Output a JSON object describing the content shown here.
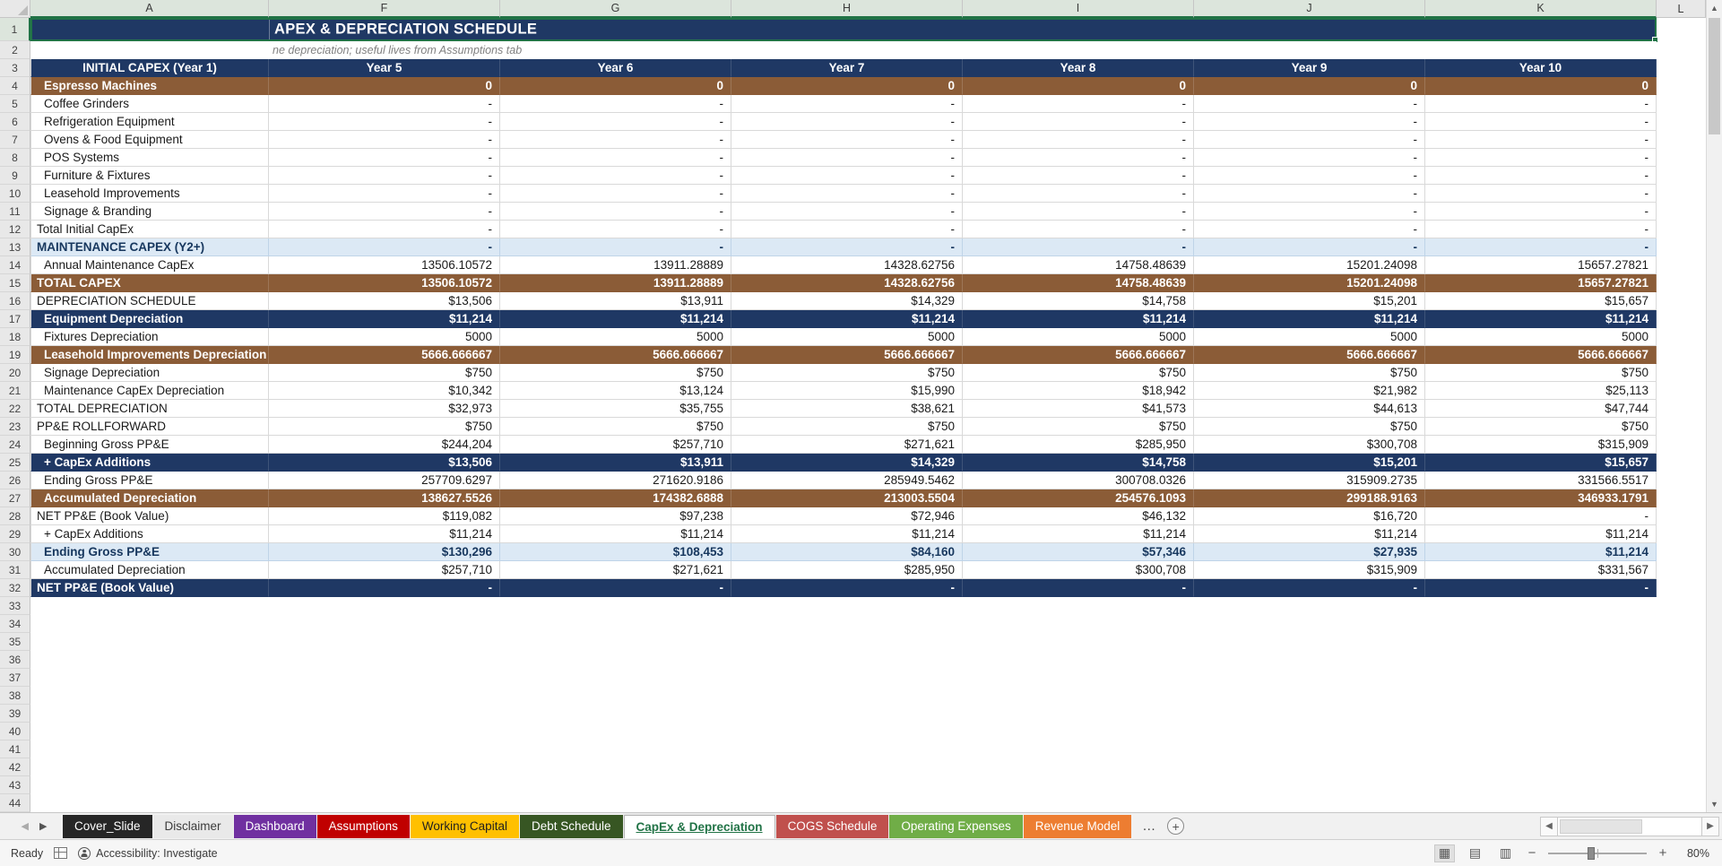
{
  "grid": {
    "title": "APEX & DEPRECIATION SCHEDULE",
    "note": "ne depreciation; useful lives from Assumptions tab",
    "col_letters": [
      "A",
      "F",
      "G",
      "H",
      "I",
      "J",
      "K",
      "L"
    ],
    "header_label": "INITIAL CAPEX (Year 1)",
    "year_headers": [
      "Year 5",
      "Year 6",
      "Year 7",
      "Year 8",
      "Year 9",
      "Year 10"
    ],
    "rows": [
      {
        "n": 4,
        "label": "Espresso Machines",
        "style": "brown",
        "bold": true,
        "indent": true,
        "values": [
          "0",
          "0",
          "0",
          "0",
          "0",
          "0"
        ]
      },
      {
        "n": 5,
        "label": "Coffee Grinders",
        "style": "plain",
        "bold": false,
        "indent": true,
        "values": [
          "-",
          "-",
          "-",
          "-",
          "-",
          "-"
        ]
      },
      {
        "n": 6,
        "label": "Refrigeration Equipment",
        "style": "plain",
        "bold": false,
        "indent": true,
        "values": [
          "-",
          "-",
          "-",
          "-",
          "-",
          "-"
        ]
      },
      {
        "n": 7,
        "label": "Ovens & Food Equipment",
        "style": "plain",
        "bold": false,
        "indent": true,
        "values": [
          "-",
          "-",
          "-",
          "-",
          "-",
          "-"
        ]
      },
      {
        "n": 8,
        "label": "POS Systems",
        "style": "plain",
        "bold": false,
        "indent": true,
        "values": [
          "-",
          "-",
          "-",
          "-",
          "-",
          "-"
        ]
      },
      {
        "n": 9,
        "label": "Furniture & Fixtures",
        "style": "plain",
        "bold": false,
        "indent": true,
        "values": [
          "-",
          "-",
          "-",
          "-",
          "-",
          "-"
        ]
      },
      {
        "n": 10,
        "label": "Leasehold Improvements",
        "style": "plain",
        "bold": false,
        "indent": true,
        "values": [
          "-",
          "-",
          "-",
          "-",
          "-",
          "-"
        ]
      },
      {
        "n": 11,
        "label": "Signage & Branding",
        "style": "plain",
        "bold": false,
        "indent": true,
        "values": [
          "-",
          "-",
          "-",
          "-",
          "-",
          "-"
        ]
      },
      {
        "n": 12,
        "label": "Total Initial CapEx",
        "style": "plain",
        "bold": false,
        "indent": false,
        "values": [
          "-",
          "-",
          "-",
          "-",
          "-",
          "-"
        ]
      },
      {
        "n": 13,
        "label": "MAINTENANCE CAPEX (Y2+)",
        "style": "blue",
        "bold": true,
        "indent": false,
        "values": [
          "-",
          "-",
          "-",
          "-",
          "-",
          "-"
        ]
      },
      {
        "n": 14,
        "label": "Annual Maintenance CapEx",
        "style": "plain",
        "bold": false,
        "indent": true,
        "values": [
          "13506.10572",
          "13911.28889",
          "14328.62756",
          "14758.48639",
          "15201.24098",
          "15657.27821"
        ]
      },
      {
        "n": 15,
        "label": "TOTAL CAPEX",
        "style": "brown",
        "bold": true,
        "indent": false,
        "values": [
          "13506.10572",
          "13911.28889",
          "14328.62756",
          "14758.48639",
          "15201.24098",
          "15657.27821"
        ]
      },
      {
        "n": 16,
        "label": "DEPRECIATION SCHEDULE",
        "style": "plain",
        "bold": false,
        "indent": false,
        "values": [
          "$13,506",
          "$13,911",
          "$14,329",
          "$14,758",
          "$15,201",
          "$15,657"
        ]
      },
      {
        "n": 17,
        "label": "Equipment Depreciation",
        "style": "navy",
        "bold": true,
        "indent": true,
        "values": [
          "$11,214",
          "$11,214",
          "$11,214",
          "$11,214",
          "$11,214",
          "$11,214"
        ]
      },
      {
        "n": 18,
        "label": "Fixtures Depreciation",
        "style": "plain",
        "bold": false,
        "indent": true,
        "values": [
          "5000",
          "5000",
          "5000",
          "5000",
          "5000",
          "5000"
        ]
      },
      {
        "n": 19,
        "label": "Leasehold Improvements Depreciation",
        "style": "brown",
        "bold": true,
        "indent": true,
        "values": [
          "5666.666667",
          "5666.666667",
          "5666.666667",
          "5666.666667",
          "5666.666667",
          "5666.666667"
        ]
      },
      {
        "n": 20,
        "label": "Signage Depreciation",
        "style": "plain",
        "bold": false,
        "indent": true,
        "values": [
          "$750",
          "$750",
          "$750",
          "$750",
          "$750",
          "$750"
        ]
      },
      {
        "n": 21,
        "label": "Maintenance CapEx Depreciation",
        "style": "plain",
        "bold": false,
        "indent": true,
        "values": [
          "$10,342",
          "$13,124",
          "$15,990",
          "$18,942",
          "$21,982",
          "$25,113"
        ]
      },
      {
        "n": 22,
        "label": "TOTAL DEPRECIATION",
        "style": "plain",
        "bold": false,
        "indent": false,
        "values": [
          "$32,973",
          "$35,755",
          "$38,621",
          "$41,573",
          "$44,613",
          "$47,744"
        ]
      },
      {
        "n": 23,
        "label": "PP&E ROLLFORWARD",
        "style": "plain",
        "bold": false,
        "indent": false,
        "values": [
          "$750",
          "$750",
          "$750",
          "$750",
          "$750",
          "$750"
        ]
      },
      {
        "n": 24,
        "label": "Beginning Gross PP&E",
        "style": "plain",
        "bold": false,
        "indent": true,
        "values": [
          "$244,204",
          "$257,710",
          "$271,621",
          "$285,950",
          "$300,708",
          "$315,909"
        ]
      },
      {
        "n": 25,
        "label": "+ CapEx Additions",
        "style": "navy",
        "bold": true,
        "indent": true,
        "values": [
          "$13,506",
          "$13,911",
          "$14,329",
          "$14,758",
          "$15,201",
          "$15,657"
        ]
      },
      {
        "n": 26,
        "label": "Ending Gross PP&E",
        "style": "plain",
        "bold": false,
        "indent": true,
        "values": [
          "257709.6297",
          "271620.9186",
          "285949.5462",
          "300708.0326",
          "315909.2735",
          "331566.5517"
        ]
      },
      {
        "n": 27,
        "label": "Accumulated Depreciation",
        "style": "brown",
        "bold": true,
        "indent": true,
        "values": [
          "138627.5526",
          "174382.6888",
          "213003.5504",
          "254576.1093",
          "299188.9163",
          "346933.1791"
        ]
      },
      {
        "n": 28,
        "label": "NET PP&E (Book Value)",
        "style": "plain",
        "bold": false,
        "indent": false,
        "values": [
          "$119,082",
          "$97,238",
          "$72,946",
          "$46,132",
          "$16,720",
          "-"
        ]
      },
      {
        "n": 29,
        "label": "+ CapEx Additions",
        "style": "plain",
        "bold": false,
        "indent": true,
        "values": [
          "$11,214",
          "$11,214",
          "$11,214",
          "$11,214",
          "$11,214",
          "$11,214"
        ]
      },
      {
        "n": 30,
        "label": "Ending Gross PP&E",
        "style": "blue",
        "bold": true,
        "indent": true,
        "values": [
          "$130,296",
          "$108,453",
          "$84,160",
          "$57,346",
          "$27,935",
          "$11,214"
        ]
      },
      {
        "n": 31,
        "label": "Accumulated Depreciation",
        "style": "plain",
        "bold": false,
        "indent": true,
        "values": [
          "$257,710",
          "$271,621",
          "$285,950",
          "$300,708",
          "$315,909",
          "$331,567"
        ]
      },
      {
        "n": 32,
        "label": "NET PP&E (Book Value)",
        "style": "navy",
        "bold": true,
        "indent": false,
        "values": [
          "-",
          "-",
          "-",
          "-",
          "-",
          "-"
        ]
      }
    ],
    "empty_row_start": 33,
    "empty_row_end": 44
  },
  "tabbar": {
    "more_label": "…",
    "add_label": "+",
    "tabs": [
      {
        "label": "Cover_Slide",
        "bg": "#262626",
        "fg": "#FFFFFF",
        "active": false
      },
      {
        "label": "Disclaimer",
        "bg": "#E9E9E9",
        "fg": "#3B3B3B",
        "active": false
      },
      {
        "label": "Dashboard",
        "bg": "#7030A0",
        "fg": "#FFFFFF",
        "active": false
      },
      {
        "label": "Assumptions",
        "bg": "#C00000",
        "fg": "#FFFFFF",
        "active": false
      },
      {
        "label": "Working Capital",
        "bg": "#FFC000",
        "fg": "#1F1F1F",
        "active": false
      },
      {
        "label": "Debt Schedule",
        "bg": "#375623",
        "fg": "#FFFFFF",
        "active": false
      },
      {
        "label": "CapEx & Depreciation",
        "bg": "#FFFFFF",
        "fg": "#217346",
        "active": true
      },
      {
        "label": "COGS Schedule",
        "bg": "#C0504D",
        "fg": "#FFFFFF",
        "active": false
      },
      {
        "label": "Operating Expenses",
        "bg": "#70AD47",
        "fg": "#FFFFFF",
        "active": false
      },
      {
        "label": "Revenue Model",
        "bg": "#ED7D31",
        "fg": "#FFFFFF",
        "active": false
      }
    ]
  },
  "status": {
    "ready": "Ready",
    "accessibility": "Accessibility: Investigate",
    "zoom": "80%"
  },
  "colors": {
    "navy": "#1F3864",
    "brown": "#8B5C37",
    "light_blue": "#DCE9F5",
    "selection_green": "#217346"
  }
}
